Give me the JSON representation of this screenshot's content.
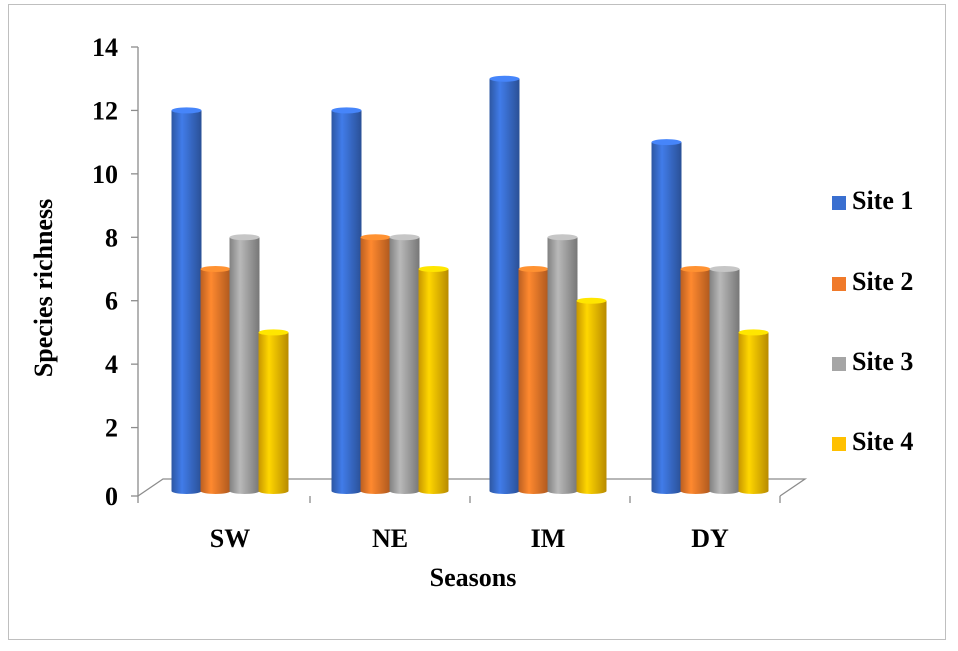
{
  "chart_data": {
    "type": "bar",
    "title": "",
    "xlabel": "Seasons",
    "ylabel": "Species richness",
    "categories": [
      "SW",
      "NE",
      "IM",
      "DY"
    ],
    "ylim": [
      0,
      14
    ],
    "yticks": [
      "0",
      "2",
      "4",
      "6",
      "8",
      "10",
      "12",
      "14"
    ],
    "grid": false,
    "legend_position": "right",
    "series": [
      {
        "name": "Site 1",
        "color": "#3a6fd0",
        "values": [
          12,
          12,
          13,
          11
        ]
      },
      {
        "name": "Site 2",
        "color": "#f07a2a",
        "values": [
          7,
          8,
          7,
          7
        ]
      },
      {
        "name": "Site 3",
        "color": "#a5a5a5",
        "values": [
          8,
          8,
          8,
          7
        ]
      },
      {
        "name": "Site 4",
        "color": "#ffc000",
        "values": [
          5,
          7,
          6,
          5
        ]
      }
    ]
  }
}
